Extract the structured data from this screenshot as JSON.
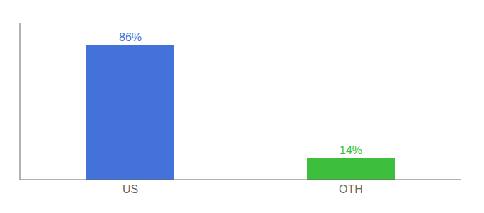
{
  "chart_data": {
    "type": "bar",
    "categories": [
      "US",
      "OTH"
    ],
    "values": [
      86,
      14
    ],
    "value_labels": [
      "86%",
      "14%"
    ],
    "colors": [
      "#4472db",
      "#3dbf3d"
    ],
    "ylim": [
      0,
      100
    ],
    "tick_labels": "x",
    "data_labels": true
  }
}
